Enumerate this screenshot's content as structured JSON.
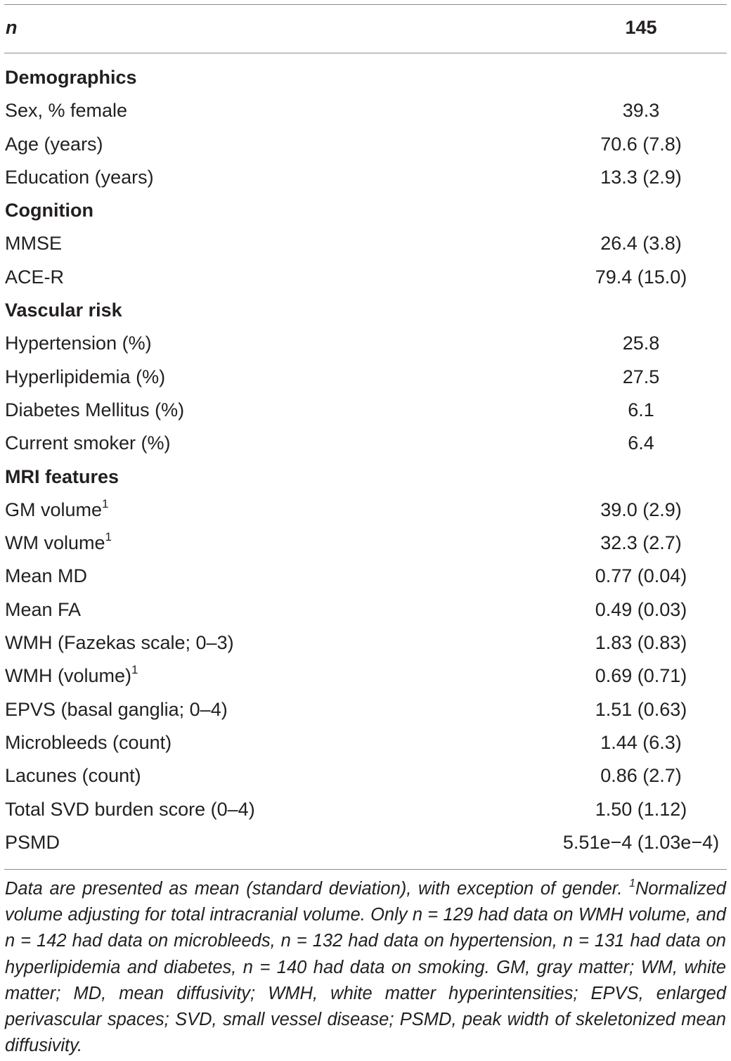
{
  "table": {
    "header": {
      "label": "n",
      "value": "145"
    },
    "rows": [
      {
        "type": "section",
        "label": "Demographics",
        "value": ""
      },
      {
        "type": "data",
        "label": "Sex, % female",
        "sup": "",
        "value": "39.3"
      },
      {
        "type": "data",
        "label": "Age (years)",
        "sup": "",
        "value": "70.6 (7.8)"
      },
      {
        "type": "data",
        "label": "Education (years)",
        "sup": "",
        "value": "13.3 (2.9)"
      },
      {
        "type": "section",
        "label": "Cognition",
        "value": ""
      },
      {
        "type": "data",
        "label": "MMSE",
        "sup": "",
        "value": "26.4 (3.8)"
      },
      {
        "type": "data",
        "label": "ACE-R",
        "sup": "",
        "value": "79.4 (15.0)"
      },
      {
        "type": "section",
        "label": "Vascular risk",
        "value": ""
      },
      {
        "type": "data",
        "label": "Hypertension (%)",
        "sup": "",
        "value": "25.8"
      },
      {
        "type": "data",
        "label": "Hyperlipidemia (%)",
        "sup": "",
        "value": "27.5"
      },
      {
        "type": "data",
        "label": "Diabetes Mellitus (%)",
        "sup": "",
        "value": "6.1"
      },
      {
        "type": "data",
        "label": "Current smoker (%)",
        "sup": "",
        "value": "6.4"
      },
      {
        "type": "section",
        "label": "MRI features",
        "value": ""
      },
      {
        "type": "data",
        "label": "GM volume",
        "sup": "1",
        "value": "39.0 (2.9)"
      },
      {
        "type": "data",
        "label": "WM volume",
        "sup": "1",
        "value": "32.3 (2.7)"
      },
      {
        "type": "data",
        "label": "Mean MD",
        "sup": "",
        "value": "0.77 (0.04)"
      },
      {
        "type": "data",
        "label": "Mean FA",
        "sup": "",
        "value": "0.49 (0.03)"
      },
      {
        "type": "data",
        "label": "WMH (Fazekas scale; 0–3)",
        "sup": "",
        "value": "1.83 (0.83)"
      },
      {
        "type": "data",
        "label": "WMH (volume)",
        "sup": "1",
        "value": "0.69 (0.71)"
      },
      {
        "type": "data",
        "label": "EPVS (basal ganglia; 0–4)",
        "sup": "",
        "value": "1.51 (0.63)"
      },
      {
        "type": "data",
        "label": "Microbleeds (count)",
        "sup": "",
        "value": "1.44 (6.3)"
      },
      {
        "type": "data",
        "label": "Lacunes (count)",
        "sup": "",
        "value": "0.86 (2.7)"
      },
      {
        "type": "data",
        "label": "Total SVD burden score (0–4)",
        "sup": "",
        "value": "1.50 (1.12)"
      },
      {
        "type": "data",
        "label": "PSMD",
        "sup": "",
        "value": "5.51e−4 (1.03e−4)"
      }
    ]
  },
  "footnote": {
    "line1": "Data are presented as mean (standard deviation), with exception of gender.",
    "sup": "1",
    "text": "Normalized volume adjusting for total intracranial volume. Only n = 129 had data on WMH volume, and n = 142 had data on microbleeds, n = 132 had data on hypertension, n = 131 had data on hyperlipidemia and diabetes, n = 140 had data on smoking. GM, gray matter; WM, white matter; MD, mean diffusivity; WMH, white matter hyperintensities; EPVS, enlarged perivascular spaces; SVD, small vessel disease; PSMD, peak width of skeletonized mean diffusivity."
  }
}
